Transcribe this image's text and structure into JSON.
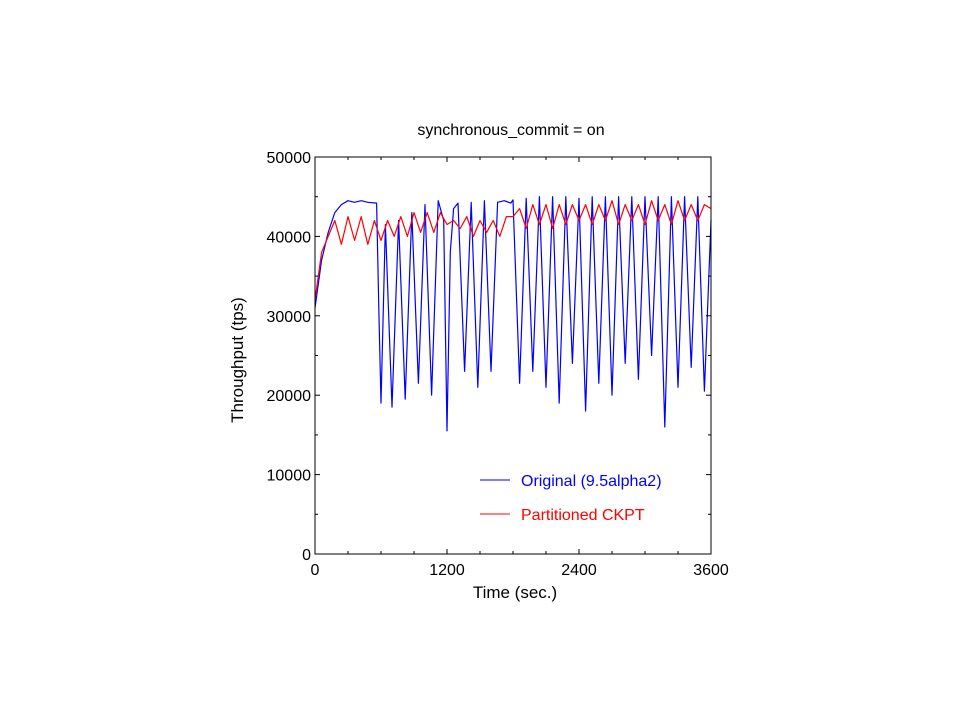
{
  "chart_data": {
    "type": "line",
    "title": "synchronous_commit = on",
    "xlabel": "Time (sec.)",
    "ylabel": "Throughput (tps)",
    "xlim": [
      0,
      3600
    ],
    "ylim": [
      0,
      50000
    ],
    "xticks": [
      0,
      1200,
      2400,
      3600
    ],
    "yticks": [
      0,
      10000,
      20000,
      30000,
      40000,
      50000
    ],
    "grid": false,
    "legend_position": "bottom-right",
    "series": [
      {
        "name": "Original (9.5alpha2)",
        "color": "#0000ff",
        "x": [
          0,
          60,
          120,
          180,
          240,
          300,
          360,
          420,
          480,
          560,
          580,
          600,
          640,
          700,
          760,
          820,
          880,
          940,
          1000,
          1060,
          1120,
          1170,
          1200,
          1230,
          1260,
          1300,
          1360,
          1420,
          1480,
          1540,
          1600,
          1660,
          1720,
          1780,
          1800,
          1860,
          1920,
          1980,
          2040,
          2100,
          2160,
          2220,
          2280,
          2340,
          2400,
          2460,
          2520,
          2580,
          2640,
          2700,
          2760,
          2820,
          2880,
          2940,
          3000,
          3060,
          3120,
          3180,
          3240,
          3300,
          3360,
          3420,
          3480,
          3540,
          3600
        ],
        "y": [
          31000,
          37000,
          40500,
          43000,
          44000,
          44500,
          44300,
          44500,
          44300,
          44200,
          31000,
          19000,
          41500,
          18500,
          42000,
          19500,
          43000,
          21500,
          44000,
          20000,
          44500,
          42000,
          15500,
          38000,
          43500,
          44200,
          23000,
          44300,
          21000,
          44500,
          23000,
          44300,
          44500,
          44200,
          44600,
          21500,
          44800,
          23000,
          45000,
          21000,
          45000,
          19000,
          45000,
          24000,
          44800,
          18000,
          45000,
          21500,
          45000,
          20000,
          45000,
          24000,
          45000,
          22000,
          45000,
          25000,
          45000,
          16000,
          45000,
          21000,
          45000,
          23500,
          45000,
          20500,
          42000
        ]
      },
      {
        "name": "Partitioned CKPT",
        "color": "#ff0000",
        "x": [
          0,
          60,
          120,
          180,
          240,
          300,
          360,
          420,
          480,
          540,
          600,
          660,
          720,
          780,
          840,
          900,
          960,
          1020,
          1080,
          1140,
          1200,
          1260,
          1320,
          1380,
          1440,
          1500,
          1560,
          1620,
          1680,
          1740,
          1800,
          1860,
          1920,
          1980,
          2040,
          2100,
          2160,
          2220,
          2280,
          2340,
          2400,
          2460,
          2520,
          2580,
          2640,
          2700,
          2760,
          2820,
          2880,
          2940,
          3000,
          3060,
          3120,
          3180,
          3240,
          3300,
          3360,
          3420,
          3480,
          3540,
          3600
        ],
        "y": [
          32000,
          38000,
          40000,
          42000,
          39000,
          42500,
          39500,
          42500,
          39000,
          42000,
          39500,
          42000,
          40000,
          42500,
          40000,
          43000,
          40500,
          43000,
          40500,
          43000,
          41500,
          42000,
          41000,
          42500,
          40000,
          42000,
          40500,
          42000,
          40000,
          42500,
          42500,
          43500,
          41000,
          44000,
          41500,
          44000,
          41000,
          44000,
          41500,
          44000,
          42000,
          44000,
          41500,
          44000,
          42000,
          44500,
          41500,
          44000,
          42000,
          44000,
          41500,
          44500,
          42000,
          44000,
          41500,
          44500,
          42000,
          44000,
          42000,
          44000,
          43500
        ]
      }
    ]
  }
}
